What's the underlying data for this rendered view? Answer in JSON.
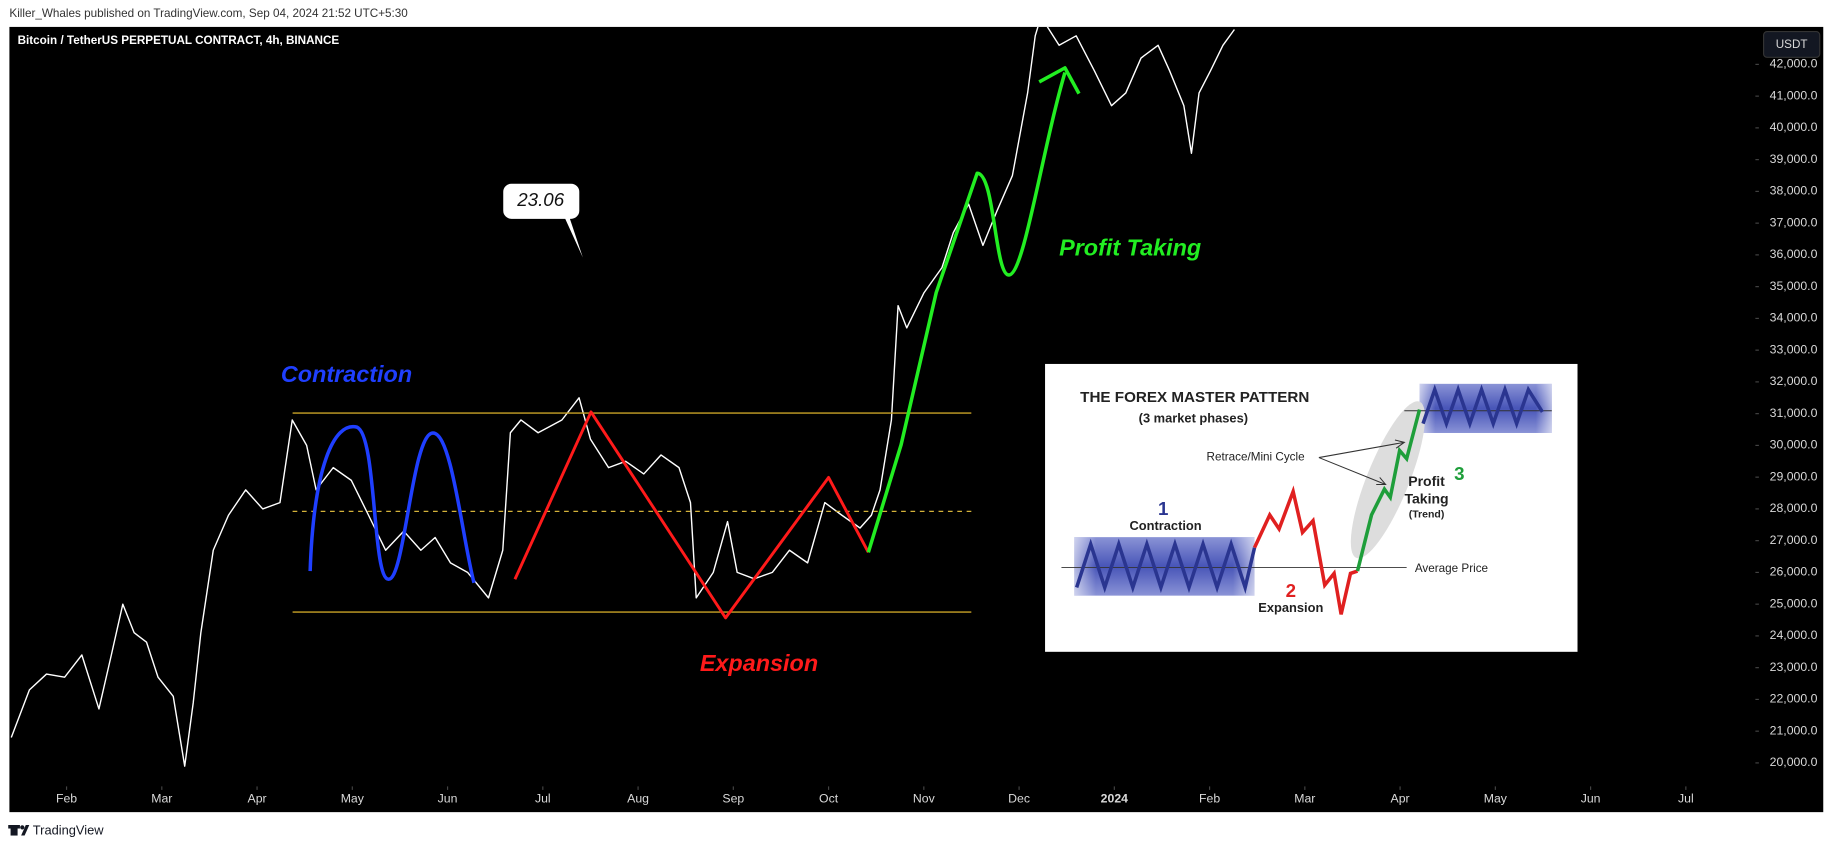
{
  "header": {
    "publisher": "Killer_Whales published on TradingView.com, Sep 04, 2024 21:52 UTC+5:30"
  },
  "chart_data": {
    "type": "line",
    "title": "Bitcoin / TetherUS PERPETUAL CONTRACT, 4h, BINANCE",
    "currency": "USDT",
    "color": "#ffffff",
    "x": [
      0.42,
      0.61,
      0.79,
      0.98,
      1.16,
      1.34,
      1.47,
      1.59,
      1.71,
      1.84,
      1.96,
      2.12,
      2.24,
      2.33,
      2.41,
      2.54,
      2.7,
      2.88,
      3.06,
      3.24,
      3.37,
      3.52,
      3.62,
      3.8,
      3.99,
      4.17,
      4.35,
      4.54,
      4.72,
      4.87,
      5.03,
      5.21,
      5.43,
      5.58,
      5.66,
      5.77,
      5.95,
      6.2,
      6.38,
      6.5,
      6.69,
      6.87,
      7.06,
      7.24,
      7.43,
      7.55,
      7.61,
      7.79,
      7.94,
      8.04,
      8.22,
      8.41,
      8.59,
      8.78,
      8.96,
      9.14,
      9.33,
      9.45,
      9.54,
      9.66,
      9.73,
      9.82,
      10.0,
      10.19,
      10.31,
      10.47,
      10.62,
      10.77,
      10.93,
      11.09,
      11.17,
      11.23,
      11.42,
      11.6,
      11.79,
      11.97,
      12.12,
      12.28,
      12.46,
      12.58,
      12.73,
      12.81,
      12.89,
      13.01,
      13.14,
      13.26
    ],
    "values": [
      20800,
      22300,
      22800,
      22700,
      23400,
      21700,
      23400,
      25000,
      24100,
      23800,
      22700,
      22100,
      19900,
      21900,
      24100,
      26700,
      27800,
      28600,
      28000,
      28200,
      30800,
      30000,
      28600,
      29300,
      28900,
      27800,
      26700,
      27300,
      26700,
      27100,
      26300,
      26000,
      25200,
      26700,
      30400,
      30800,
      30400,
      30800,
      31500,
      30200,
      29300,
      29500,
      29100,
      29700,
      29300,
      28200,
      25200,
      26000,
      27600,
      26000,
      25800,
      26000,
      26700,
      26300,
      28200,
      27800,
      27400,
      27800,
      28600,
      30800,
      34400,
      33700,
      34800,
      35600,
      36700,
      37600,
      36300,
      37400,
      38500,
      41100,
      42900,
      43500,
      42600,
      42900,
      41800,
      40700,
      41100,
      42200,
      42600,
      41800,
      40700,
      39200,
      41100,
      41800,
      42600,
      43100
    ],
    "xlim": [
      0.4,
      18.73
    ],
    "xticks": [
      {
        "value": 1,
        "label": "Feb"
      },
      {
        "value": 2,
        "label": "Mar"
      },
      {
        "value": 3,
        "label": "Apr"
      },
      {
        "value": 4,
        "label": "May"
      },
      {
        "value": 5,
        "label": "Jun"
      },
      {
        "value": 6,
        "label": "Jul"
      },
      {
        "value": 7,
        "label": "Aug"
      },
      {
        "value": 8,
        "label": "Sep"
      },
      {
        "value": 9,
        "label": "Oct"
      },
      {
        "value": 10,
        "label": "Nov"
      },
      {
        "value": 11,
        "label": "Dec"
      },
      {
        "value": 12,
        "label": "2024"
      },
      {
        "value": 13,
        "label": "Feb"
      },
      {
        "value": 14,
        "label": "Mar"
      },
      {
        "value": 15,
        "label": "Apr"
      },
      {
        "value": 16,
        "label": "May"
      },
      {
        "value": 17,
        "label": "Jun"
      },
      {
        "value": 18,
        "label": "Jul"
      }
    ],
    "ylim": [
      18450,
      43180
    ],
    "yticks": [
      {
        "value": 20000,
        "label": "20,000.0"
      },
      {
        "value": 21000,
        "label": "21,000.0"
      },
      {
        "value": 22000,
        "label": "22,000.0"
      },
      {
        "value": 23000,
        "label": "23,000.0"
      },
      {
        "value": 24000,
        "label": "24,000.0"
      },
      {
        "value": 25000,
        "label": "25,000.0"
      },
      {
        "value": 26000,
        "label": "26,000.0"
      },
      {
        "value": 27000,
        "label": "27,000.0"
      },
      {
        "value": 28000,
        "label": "28,000.0"
      },
      {
        "value": 29000,
        "label": "29,000.0"
      },
      {
        "value": 30000,
        "label": "30,000.0"
      },
      {
        "value": 31000,
        "label": "31,000.0"
      },
      {
        "value": 32000,
        "label": "32,000.0"
      },
      {
        "value": 33000,
        "label": "33,000.0"
      },
      {
        "value": 34000,
        "label": "34,000.0"
      },
      {
        "value": 35000,
        "label": "35,000.0"
      },
      {
        "value": 36000,
        "label": "36,000.0"
      },
      {
        "value": 37000,
        "label": "37,000.0"
      },
      {
        "value": 38000,
        "label": "38,000.0"
      },
      {
        "value": 39000,
        "label": "39,000.0"
      },
      {
        "value": 40000,
        "label": "40,000.0"
      },
      {
        "value": 41000,
        "label": "41,000.0"
      },
      {
        "value": 42000,
        "label": "42,000.0"
      }
    ],
    "grid": false
  },
  "annotations": {
    "callout": "23.06",
    "contraction": "Contraction",
    "expansion": "Expansion",
    "profit_taking": "Profit Taking"
  },
  "inset": {
    "title": "THE FOREX MASTER PATTERN",
    "subtitle": "(3 market phases)",
    "retrace": "Retrace/Mini Cycle",
    "phase1_number": "1",
    "phase1_name": "Contraction",
    "phase2_number": "2",
    "phase2_name": "Expansion",
    "phase3_number": "3",
    "phase3_line1": "Profit",
    "phase3_line2": "Taking",
    "phase3_line3": "(Trend)",
    "average": "Average Price"
  },
  "footer": {
    "brand": "TradingView"
  }
}
